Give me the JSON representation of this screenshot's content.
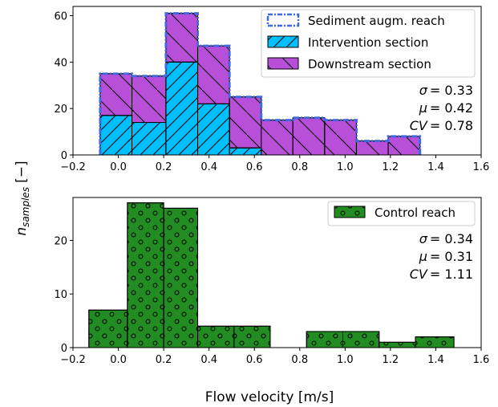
{
  "figure": {
    "xlabel": "Flow velocity [m/s]",
    "ylabel_main": "n",
    "ylabel_sub": "samples",
    "ylabel_unit": "[−]"
  },
  "colors": {
    "intervention": "#00bfff",
    "downstream": "#b84fd8",
    "sediment_outline": "#4169e1",
    "control": "#228b22"
  },
  "chart_data": [
    {
      "type": "histogram",
      "panel": "top",
      "xlim": [
        -0.2,
        1.6
      ],
      "ylim": [
        0,
        64
      ],
      "xticks": [
        -0.2,
        0.0,
        0.2,
        0.4,
        0.6,
        0.8,
        1.0,
        1.2,
        1.4,
        1.6
      ],
      "xtick_labels": [
        "−0.2",
        "0.0",
        "0.2",
        "0.4",
        "0.6",
        "0.8",
        "1.0",
        "1.2",
        "1.4",
        "1.6"
      ],
      "yticks": [
        0,
        20,
        40,
        60
      ],
      "ytick_labels": [
        "0",
        "20",
        "40",
        "60"
      ],
      "bin_edges": [
        -0.08,
        0.06,
        0.21,
        0.35,
        0.49,
        0.63,
        0.77,
        0.91,
        1.05,
        1.19,
        1.33
      ],
      "legend_position": "top-right",
      "series": [
        {
          "name": "Sediment augm. reach",
          "style": "step-outline",
          "values": [
            35,
            34,
            61,
            47,
            25,
            15,
            16,
            15,
            6,
            8
          ]
        },
        {
          "name": "Intervention section",
          "style": "hatch-diagonal",
          "values": [
            17,
            14,
            40,
            22,
            3,
            0,
            0,
            0,
            0,
            0
          ]
        },
        {
          "name": "Downstream section",
          "style": "hatch-back-diagonal",
          "stacked_on": "Intervention section",
          "values": [
            18,
            20,
            21,
            25,
            22,
            15,
            16,
            15,
            6,
            8
          ]
        }
      ],
      "annotations": [
        {
          "symbol": "σ",
          "value": "= 0.33"
        },
        {
          "symbol": "μ",
          "value": "= 0.42"
        },
        {
          "symbol": "CV",
          "value": "= 0.78"
        }
      ]
    },
    {
      "type": "histogram",
      "panel": "bottom",
      "xlim": [
        -0.2,
        1.6
      ],
      "ylim": [
        0,
        28
      ],
      "xticks": [
        -0.2,
        0.0,
        0.2,
        0.4,
        0.6,
        0.8,
        1.0,
        1.2,
        1.4,
        1.6
      ],
      "xtick_labels": [
        "−0.2",
        "0.0",
        "0.2",
        "0.4",
        "0.6",
        "0.8",
        "1.0",
        "1.2",
        "1.4",
        "1.6"
      ],
      "yticks": [
        0,
        10,
        20
      ],
      "ytick_labels": [
        "0",
        "10",
        "20"
      ],
      "bin_edges": [
        -0.13,
        0.04,
        0.2,
        0.35,
        0.51,
        0.67,
        0.83,
        0.99,
        1.15,
        1.31,
        1.48
      ],
      "legend_position": "top-right",
      "series": [
        {
          "name": "Control reach",
          "style": "dots",
          "values": [
            7,
            27,
            26,
            4,
            4,
            0,
            3,
            3,
            1,
            2
          ]
        }
      ],
      "annotations": [
        {
          "symbol": "σ",
          "value": "= 0.34"
        },
        {
          "symbol": "μ",
          "value": "= 0.31"
        },
        {
          "symbol": "CV",
          "value": "= 1.11"
        }
      ]
    }
  ]
}
